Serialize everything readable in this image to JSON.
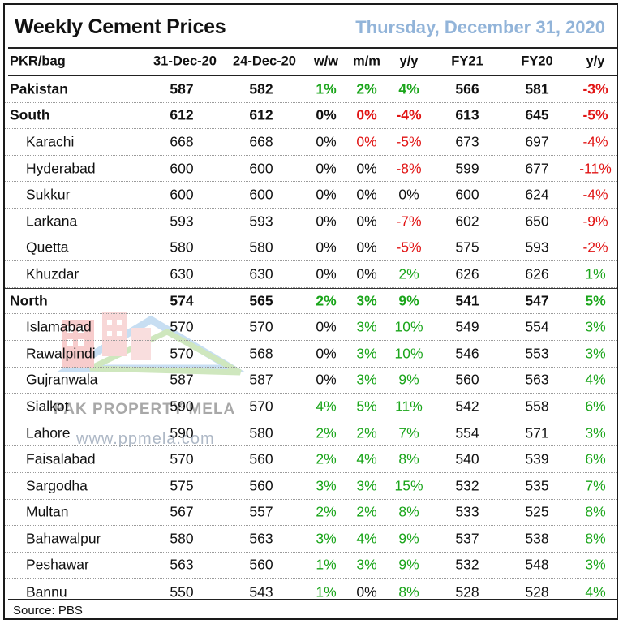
{
  "title": "Weekly Cement Prices",
  "date": "Thursday, December 31, 2020",
  "columns": [
    "PKR/bag",
    "31-Dec-20",
    "24-Dec-20",
    "w/w",
    "m/m",
    "y/y",
    "FY21",
    "FY20",
    "y/y"
  ],
  "rows": [
    {
      "name": "Pakistan",
      "bold": true,
      "sub": false,
      "v": [
        "587",
        "582",
        "1%",
        "2%",
        "4%",
        "566",
        "581",
        "-3%"
      ]
    },
    {
      "name": "South",
      "bold": true,
      "sub": false,
      "v": [
        "612",
        "612",
        "0%",
        "0%",
        "-4%",
        "613",
        "645",
        "-5%"
      ]
    },
    {
      "name": "Karachi",
      "bold": false,
      "sub": true,
      "v": [
        "668",
        "668",
        "0%",
        "0%",
        "-5%",
        "673",
        "697",
        "-4%"
      ]
    },
    {
      "name": "Hyderabad",
      "bold": false,
      "sub": true,
      "v": [
        "600",
        "600",
        "0%",
        "0%",
        "-8%",
        "599",
        "677",
        "-11%"
      ]
    },
    {
      "name": "Sukkur",
      "bold": false,
      "sub": true,
      "v": [
        "600",
        "600",
        "0%",
        "0%",
        "0%",
        "600",
        "624",
        "-4%"
      ]
    },
    {
      "name": "Larkana",
      "bold": false,
      "sub": true,
      "v": [
        "593",
        "593",
        "0%",
        "0%",
        "-7%",
        "602",
        "650",
        "-9%"
      ]
    },
    {
      "name": "Quetta",
      "bold": false,
      "sub": true,
      "v": [
        "580",
        "580",
        "0%",
        "0%",
        "-5%",
        "575",
        "593",
        "-2%"
      ]
    },
    {
      "name": "Khuzdar",
      "bold": false,
      "sub": true,
      "v": [
        "630",
        "630",
        "0%",
        "0%",
        "2%",
        "626",
        "626",
        "1%"
      ]
    },
    {
      "name": "North",
      "bold": true,
      "sub": false,
      "v": [
        "574",
        "565",
        "2%",
        "3%",
        "9%",
        "541",
        "547",
        "5%"
      ]
    },
    {
      "name": "Islamabad",
      "bold": false,
      "sub": true,
      "v": [
        "570",
        "570",
        "0%",
        "3%",
        "10%",
        "549",
        "554",
        "3%"
      ]
    },
    {
      "name": "Rawalpindi",
      "bold": false,
      "sub": true,
      "v": [
        "570",
        "568",
        "0%",
        "3%",
        "10%",
        "546",
        "553",
        "3%"
      ]
    },
    {
      "name": "Gujranwala",
      "bold": false,
      "sub": true,
      "v": [
        "587",
        "587",
        "0%",
        "3%",
        "9%",
        "560",
        "563",
        "4%"
      ]
    },
    {
      "name": "Sialkot",
      "bold": false,
      "sub": true,
      "v": [
        "590",
        "570",
        "4%",
        "5%",
        "11%",
        "542",
        "558",
        "6%"
      ]
    },
    {
      "name": "Lahore",
      "bold": false,
      "sub": true,
      "v": [
        "590",
        "580",
        "2%",
        "2%",
        "7%",
        "554",
        "571",
        "3%"
      ]
    },
    {
      "name": "Faisalabad",
      "bold": false,
      "sub": true,
      "v": [
        "570",
        "560",
        "2%",
        "4%",
        "8%",
        "540",
        "539",
        "6%"
      ]
    },
    {
      "name": "Sargodha",
      "bold": false,
      "sub": true,
      "v": [
        "575",
        "560",
        "3%",
        "3%",
        "15%",
        "532",
        "535",
        "7%"
      ]
    },
    {
      "name": "Multan",
      "bold": false,
      "sub": true,
      "v": [
        "567",
        "557",
        "2%",
        "2%",
        "8%",
        "533",
        "525",
        "8%"
      ]
    },
    {
      "name": "Bahawalpur",
      "bold": false,
      "sub": true,
      "v": [
        "580",
        "563",
        "3%",
        "4%",
        "9%",
        "537",
        "538",
        "8%"
      ]
    },
    {
      "name": "Peshawar",
      "bold": false,
      "sub": true,
      "v": [
        "563",
        "560",
        "1%",
        "3%",
        "9%",
        "532",
        "548",
        "3%"
      ]
    },
    {
      "name": "Bannu",
      "bold": false,
      "sub": true,
      "v": [
        "550",
        "543",
        "1%",
        "0%",
        "8%",
        "528",
        "528",
        "4%"
      ]
    }
  ],
  "source": "Source: PBS",
  "watermark": {
    "line1": "PAK PROPERTY MELA",
    "line2": "www.ppmela.com"
  },
  "colors": {
    "positive": "#1aa51a",
    "negative": "#e11414",
    "date": "#92b4d9"
  }
}
